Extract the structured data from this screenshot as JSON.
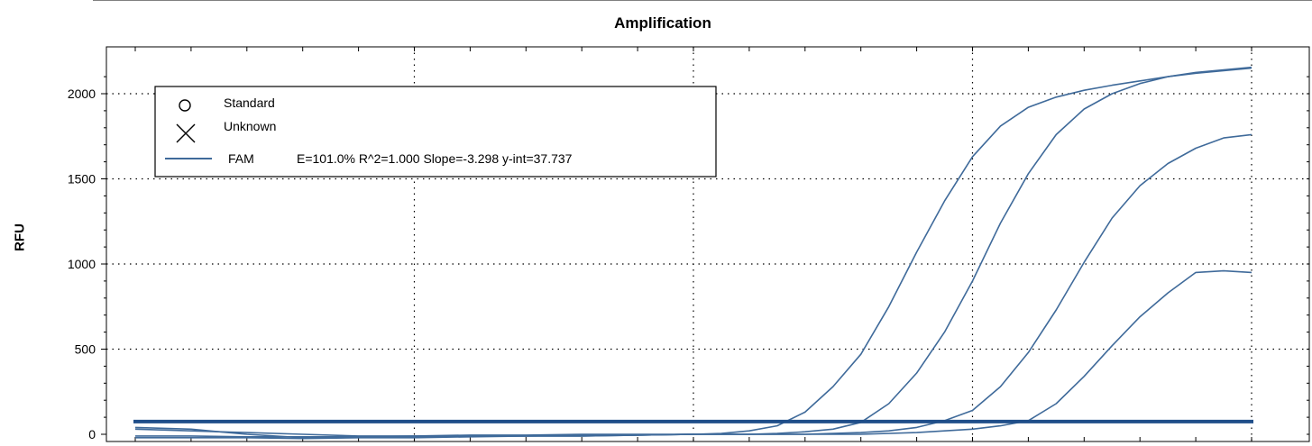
{
  "chart_data": {
    "type": "line",
    "title": "Amplification",
    "ylabel": "RFU",
    "xlabel": "",
    "xlim": [
      0,
      40
    ],
    "ylim": [
      0,
      2150
    ],
    "y_ticks": [
      0,
      500,
      1000,
      1500,
      2000
    ],
    "grid": true,
    "legend": {
      "placement": "top-left",
      "entries": [
        {
          "marker": "circle",
          "label": "Standard"
        },
        {
          "marker": "x",
          "label": "Unknown"
        },
        {
          "marker": "line",
          "label": "FAM",
          "stats": "E=101.0% R^2=1.000 Slope=-3.298 y-int=37.737"
        }
      ]
    },
    "threshold": 75,
    "line_color": "#3f6a9a",
    "threshold_color": "#1f4e89",
    "series": [
      {
        "x": [
          0,
          2,
          4,
          6,
          8,
          10,
          12,
          14,
          16,
          18,
          20,
          21,
          22,
          23,
          24,
          25,
          26,
          27,
          28,
          29,
          30,
          31,
          32,
          33,
          34,
          35,
          36,
          37,
          38,
          39,
          40
        ],
        "values": [
          40,
          30,
          0,
          -20,
          -15,
          -10,
          -5,
          -5,
          0,
          0,
          0,
          5,
          20,
          50,
          130,
          280,
          470,
          750,
          1070,
          1370,
          1630,
          1810,
          1920,
          1980,
          2020,
          2050,
          2075,
          2100,
          2120,
          2135,
          2150
        ]
      },
      {
        "x": [
          0,
          2,
          4,
          6,
          8,
          10,
          12,
          14,
          16,
          18,
          20,
          22,
          23,
          24,
          25,
          26,
          27,
          28,
          29,
          30,
          31,
          32,
          33,
          34,
          35,
          36,
          37,
          38,
          39,
          40
        ],
        "values": [
          -20,
          -20,
          -20,
          -25,
          -20,
          -20,
          -15,
          -10,
          -10,
          -5,
          0,
          0,
          5,
          15,
          30,
          70,
          180,
          360,
          600,
          900,
          1240,
          1530,
          1760,
          1910,
          2000,
          2060,
          2100,
          2125,
          2140,
          2155
        ]
      },
      {
        "x": [
          0,
          2,
          4,
          6,
          8,
          10,
          12,
          14,
          16,
          18,
          20,
          22,
          24,
          26,
          27,
          28,
          29,
          30,
          31,
          32,
          33,
          34,
          35,
          36,
          37,
          38,
          39,
          40
        ],
        "values": [
          30,
          20,
          10,
          0,
          -10,
          -10,
          -10,
          -10,
          -5,
          -5,
          0,
          0,
          0,
          10,
          20,
          40,
          80,
          140,
          280,
          480,
          730,
          1010,
          1270,
          1460,
          1590,
          1680,
          1740,
          1760
        ]
      },
      {
        "x": [
          0,
          2,
          4,
          6,
          8,
          10,
          12,
          14,
          16,
          18,
          20,
          22,
          24,
          26,
          28,
          30,
          31,
          32,
          33,
          34,
          35,
          36,
          37,
          38,
          39,
          40
        ],
        "values": [
          -10,
          -10,
          -15,
          -15,
          -15,
          -15,
          -10,
          -10,
          -10,
          -5,
          0,
          0,
          0,
          0,
          10,
          30,
          50,
          80,
          180,
          340,
          520,
          690,
          830,
          950,
          960,
          950
        ]
      }
    ]
  }
}
